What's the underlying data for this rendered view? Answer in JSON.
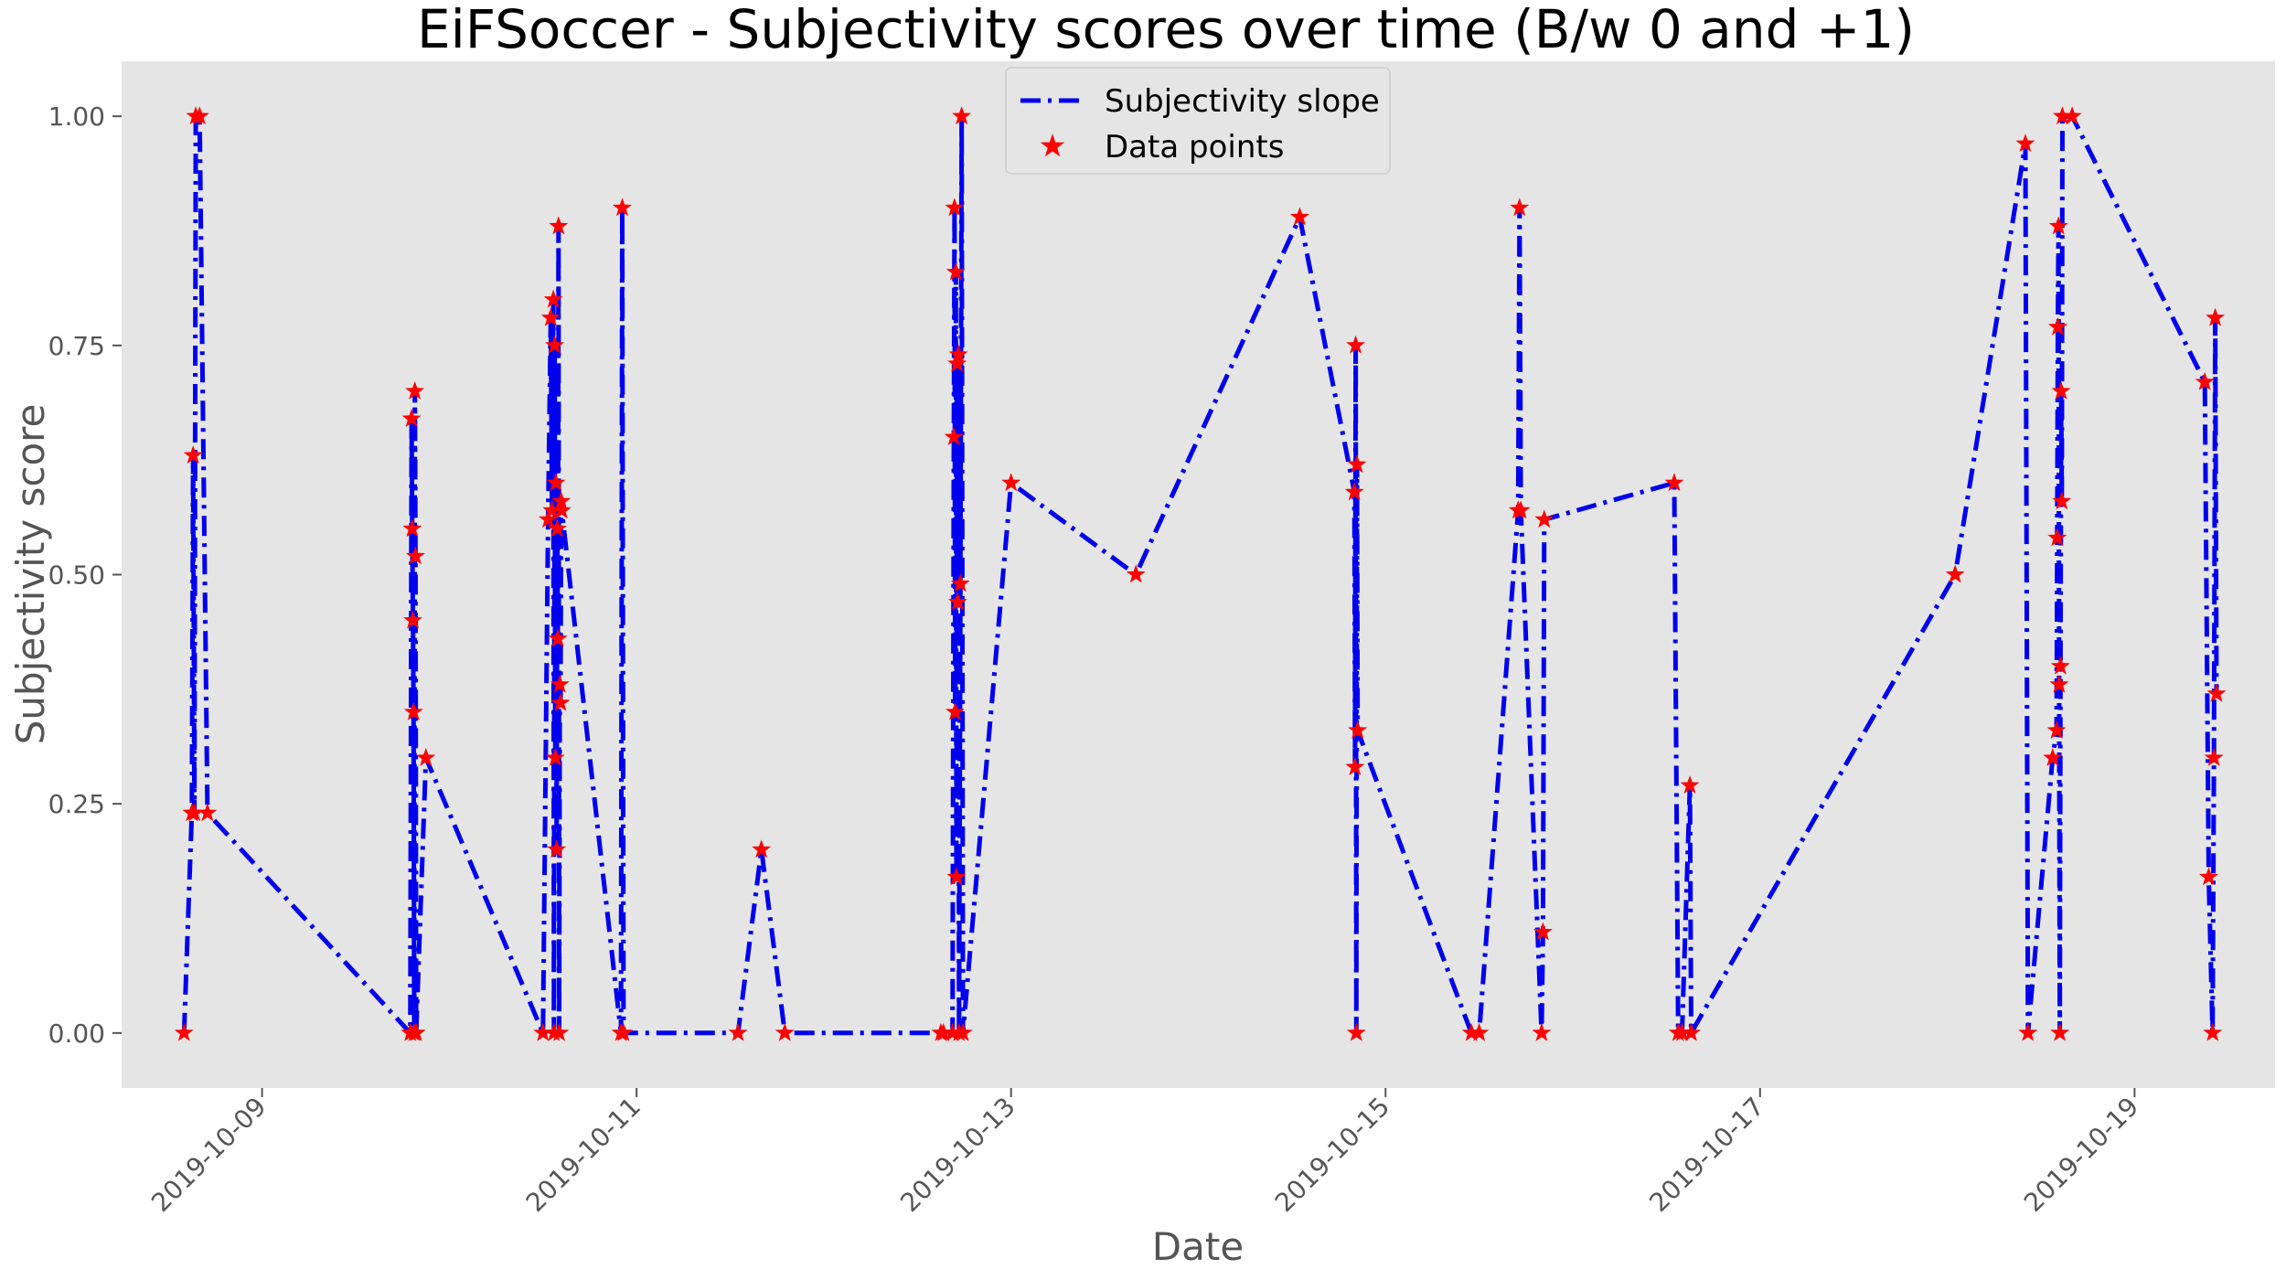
{
  "chart_data": {
    "type": "line",
    "title": "EiFSoccer - Subjectivity scores over time (B/w 0 and +1)",
    "xlabel": "Date",
    "ylabel": "Subjectivity score",
    "x_ticks": [
      "2019-10-09",
      "2019-10-11",
      "2019-10-13",
      "2019-10-15",
      "2019-10-17",
      "2019-10-19"
    ],
    "y_ticks": [
      "0.00",
      "0.25",
      "0.50",
      "0.75",
      "1.00"
    ],
    "xlim": [
      "2019-10-08T06:00",
      "2019-10-19T18:00"
    ],
    "ylim": [
      -0.06,
      1.06
    ],
    "grid": false,
    "legend_position": "top-center",
    "series": [
      {
        "name": "Subjectivity slope",
        "kind": "line",
        "style": "dash-dot",
        "color": "#0000ee",
        "points": [
          [
            "2019-10-08T14:00",
            0.0
          ],
          [
            "2019-10-08T15:00",
            0.24
          ],
          [
            "2019-10-08T15:10",
            0.63
          ],
          [
            "2019-10-08T15:20",
            0.24
          ],
          [
            "2019-10-08T15:30",
            1.0
          ],
          [
            "2019-10-08T16:00",
            1.0
          ],
          [
            "2019-10-08T17:00",
            0.24
          ],
          [
            "2019-10-09T19:00",
            0.0
          ],
          [
            "2019-10-09T19:10",
            0.67
          ],
          [
            "2019-10-09T19:15",
            0.55
          ],
          [
            "2019-10-09T19:20",
            0.45
          ],
          [
            "2019-10-09T19:25",
            0.35
          ],
          [
            "2019-10-09T19:30",
            0.0
          ],
          [
            "2019-10-09T19:35",
            0.7
          ],
          [
            "2019-10-09T19:40",
            0.52
          ],
          [
            "2019-10-09T19:45",
            0.0
          ],
          [
            "2019-10-09T21:00",
            0.3
          ],
          [
            "2019-10-10T12:00",
            0.0
          ],
          [
            "2019-10-10T12:40",
            0.56
          ],
          [
            "2019-10-10T13:00",
            0.78
          ],
          [
            "2019-10-10T13:10",
            0.57
          ],
          [
            "2019-10-10T13:20",
            0.8
          ],
          [
            "2019-10-10T13:25",
            0.0
          ],
          [
            "2019-10-10T13:30",
            0.75
          ],
          [
            "2019-10-10T13:35",
            0.3
          ],
          [
            "2019-10-10T13:40",
            0.6
          ],
          [
            "2019-10-10T13:45",
            0.2
          ],
          [
            "2019-10-10T13:50",
            0.55
          ],
          [
            "2019-10-10T13:55",
            0.43
          ],
          [
            "2019-10-10T14:00",
            0.88
          ],
          [
            "2019-10-10T14:05",
            0.0
          ],
          [
            "2019-10-10T14:10",
            0.38
          ],
          [
            "2019-10-10T14:15",
            0.36
          ],
          [
            "2019-10-10T14:20",
            0.58
          ],
          [
            "2019-10-10T14:25",
            0.57
          ],
          [
            "2019-10-10T22:00",
            0.0
          ],
          [
            "2019-10-10T22:10",
            0.9
          ],
          [
            "2019-10-10T22:20",
            0.0
          ],
          [
            "2019-10-11T13:00",
            0.0
          ],
          [
            "2019-10-11T16:00",
            0.2
          ],
          [
            "2019-10-11T19:00",
            0.0
          ],
          [
            "2019-10-12T15:00",
            0.0
          ],
          [
            "2019-10-12T15:20",
            0.0
          ],
          [
            "2019-10-12T16:30",
            0.0
          ],
          [
            "2019-10-12T16:40",
            0.65
          ],
          [
            "2019-10-12T16:45",
            0.9
          ],
          [
            "2019-10-12T16:50",
            0.35
          ],
          [
            "2019-10-12T16:55",
            0.83
          ],
          [
            "2019-10-12T17:00",
            0.17
          ],
          [
            "2019-10-12T17:05",
            0.73
          ],
          [
            "2019-10-12T17:10",
            0.47
          ],
          [
            "2019-10-12T17:15",
            0.74
          ],
          [
            "2019-10-12T17:20",
            0.0
          ],
          [
            "2019-10-12T17:30",
            0.49
          ],
          [
            "2019-10-12T17:40",
            1.0
          ],
          [
            "2019-10-12T17:50",
            0.0
          ],
          [
            "2019-10-13T00:00",
            0.6
          ],
          [
            "2019-10-13T16:00",
            0.5
          ],
          [
            "2019-10-14T13:00",
            0.89
          ],
          [
            "2019-10-14T20:00",
            0.59
          ],
          [
            "2019-10-14T20:05",
            0.29
          ],
          [
            "2019-10-14T20:10",
            0.75
          ],
          [
            "2019-10-14T20:15",
            0.0
          ],
          [
            "2019-10-14T20:20",
            0.62
          ],
          [
            "2019-10-14T20:25",
            0.33
          ],
          [
            "2019-10-15T11:00",
            0.0
          ],
          [
            "2019-10-15T12:00",
            0.0
          ],
          [
            "2019-10-15T17:00",
            0.57
          ],
          [
            "2019-10-15T17:10",
            0.9
          ],
          [
            "2019-10-15T17:20",
            0.57
          ],
          [
            "2019-10-15T20:00",
            0.0
          ],
          [
            "2019-10-15T20:10",
            0.11
          ],
          [
            "2019-10-15T20:20",
            0.56
          ],
          [
            "2019-10-16T13:00",
            0.6
          ],
          [
            "2019-10-16T13:30",
            0.0
          ],
          [
            "2019-10-16T14:00",
            0.0
          ],
          [
            "2019-10-16T15:00",
            0.27
          ],
          [
            "2019-10-16T15:10",
            0.0
          ],
          [
            "2019-10-18T01:00",
            0.5
          ],
          [
            "2019-10-18T10:00",
            0.97
          ],
          [
            "2019-10-18T10:20",
            0.0
          ],
          [
            "2019-10-18T13:30",
            0.3
          ],
          [
            "2019-10-18T14:00",
            0.33
          ],
          [
            "2019-10-18T14:05",
            0.54
          ],
          [
            "2019-10-18T14:10",
            0.77
          ],
          [
            "2019-10-18T14:15",
            0.88
          ],
          [
            "2019-10-18T14:20",
            0.38
          ],
          [
            "2019-10-18T14:25",
            0.0
          ],
          [
            "2019-10-18T14:30",
            0.4
          ],
          [
            "2019-10-18T14:35",
            0.7
          ],
          [
            "2019-10-18T14:40",
            0.58
          ],
          [
            "2019-10-18T14:45",
            1.0
          ],
          [
            "2019-10-18T16:00",
            1.0
          ],
          [
            "2019-10-19T09:00",
            0.71
          ],
          [
            "2019-10-19T09:30",
            0.17
          ],
          [
            "2019-10-19T10:00",
            0.0
          ],
          [
            "2019-10-19T10:10",
            0.3
          ],
          [
            "2019-10-19T10:20",
            0.78
          ],
          [
            "2019-10-19T10:30",
            0.37
          ]
        ]
      },
      {
        "name": "Data points",
        "kind": "scatter",
        "marker": "star",
        "color": "#ff0000"
      }
    ]
  },
  "colors": {
    "axes_background": "#e5e5e5",
    "line": "#0000ee",
    "marker": "#ff0000",
    "text": "#555555",
    "title": "#000000"
  }
}
